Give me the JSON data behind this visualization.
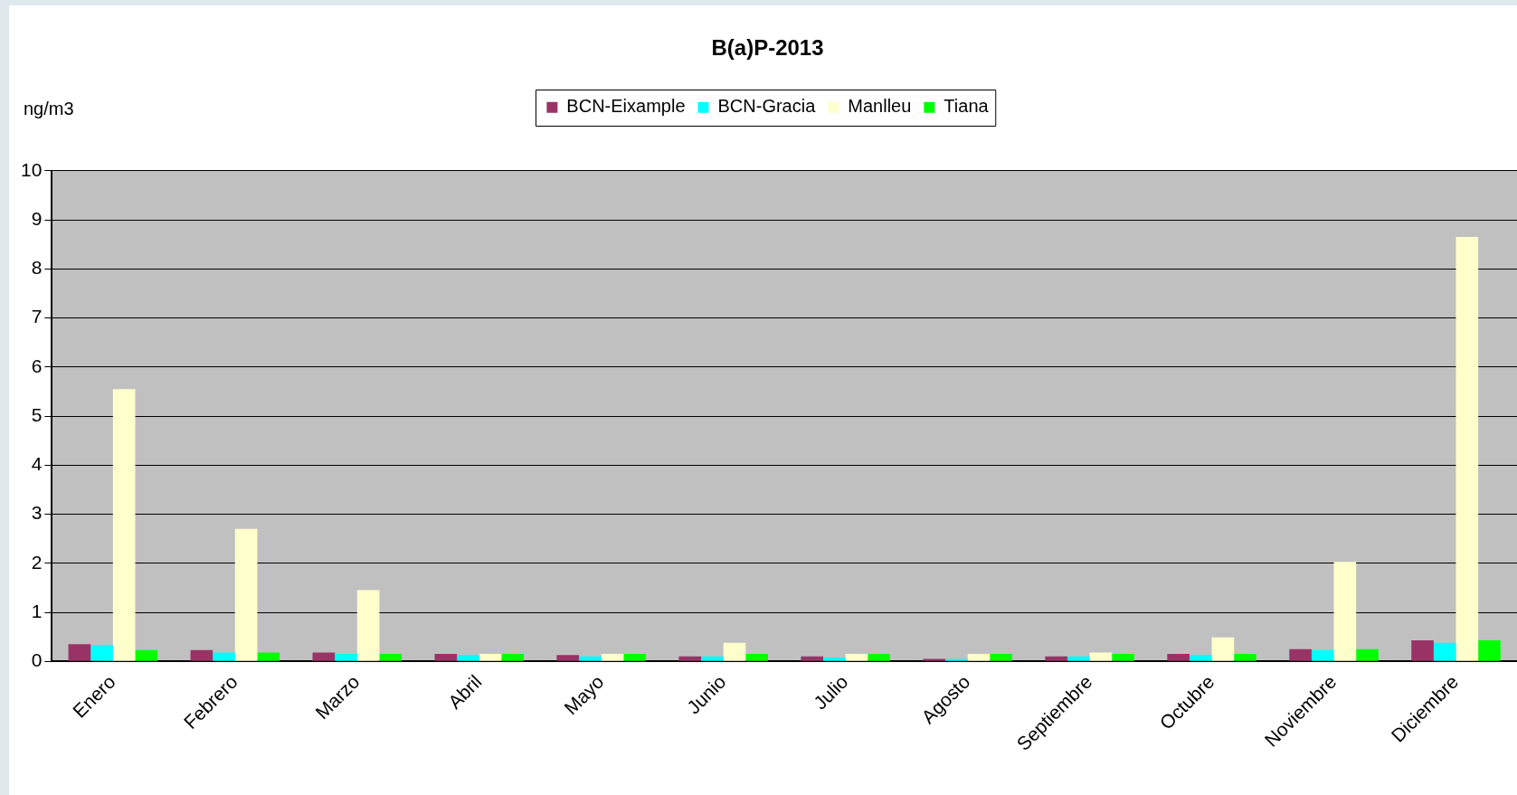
{
  "chart_data": {
    "type": "bar",
    "title": "B(a)P-2013",
    "ylabel": "ng/m3",
    "categories": [
      "Enero",
      "Febrero",
      "Marzo",
      "Abril",
      "Mayo",
      "Junio",
      "Julio",
      "Agosto",
      "Septiembre",
      "Octubre",
      "Noviembre",
      "Diciembre"
    ],
    "series": [
      {
        "name": "BCN-Eixample",
        "color": "#993366",
        "values": [
          0.35,
          0.23,
          0.18,
          0.15,
          0.13,
          0.1,
          0.1,
          0.05,
          0.1,
          0.15,
          0.25,
          0.43
        ]
      },
      {
        "name": "BCN-Gracia",
        "color": "#00ffff",
        "values": [
          0.33,
          0.18,
          0.15,
          0.13,
          0.1,
          0.1,
          0.08,
          0.05,
          0.1,
          0.13,
          0.23,
          0.38
        ]
      },
      {
        "name": "Manlleu",
        "color": "#ffffcc",
        "values": [
          5.55,
          2.7,
          1.45,
          0.15,
          0.15,
          0.38,
          0.15,
          0.15,
          0.18,
          0.49,
          2.03,
          8.65
        ]
      },
      {
        "name": "Tiana",
        "color": "#00ff00",
        "values": [
          0.23,
          0.18,
          0.15,
          0.15,
          0.15,
          0.15,
          0.15,
          0.15,
          0.15,
          0.15,
          0.25,
          0.43
        ]
      }
    ],
    "ylim": [
      0,
      10
    ],
    "yticks": [
      0,
      1,
      2,
      3,
      4,
      5,
      6,
      7,
      8,
      9,
      10
    ],
    "grid": "y",
    "legend": "top"
  }
}
